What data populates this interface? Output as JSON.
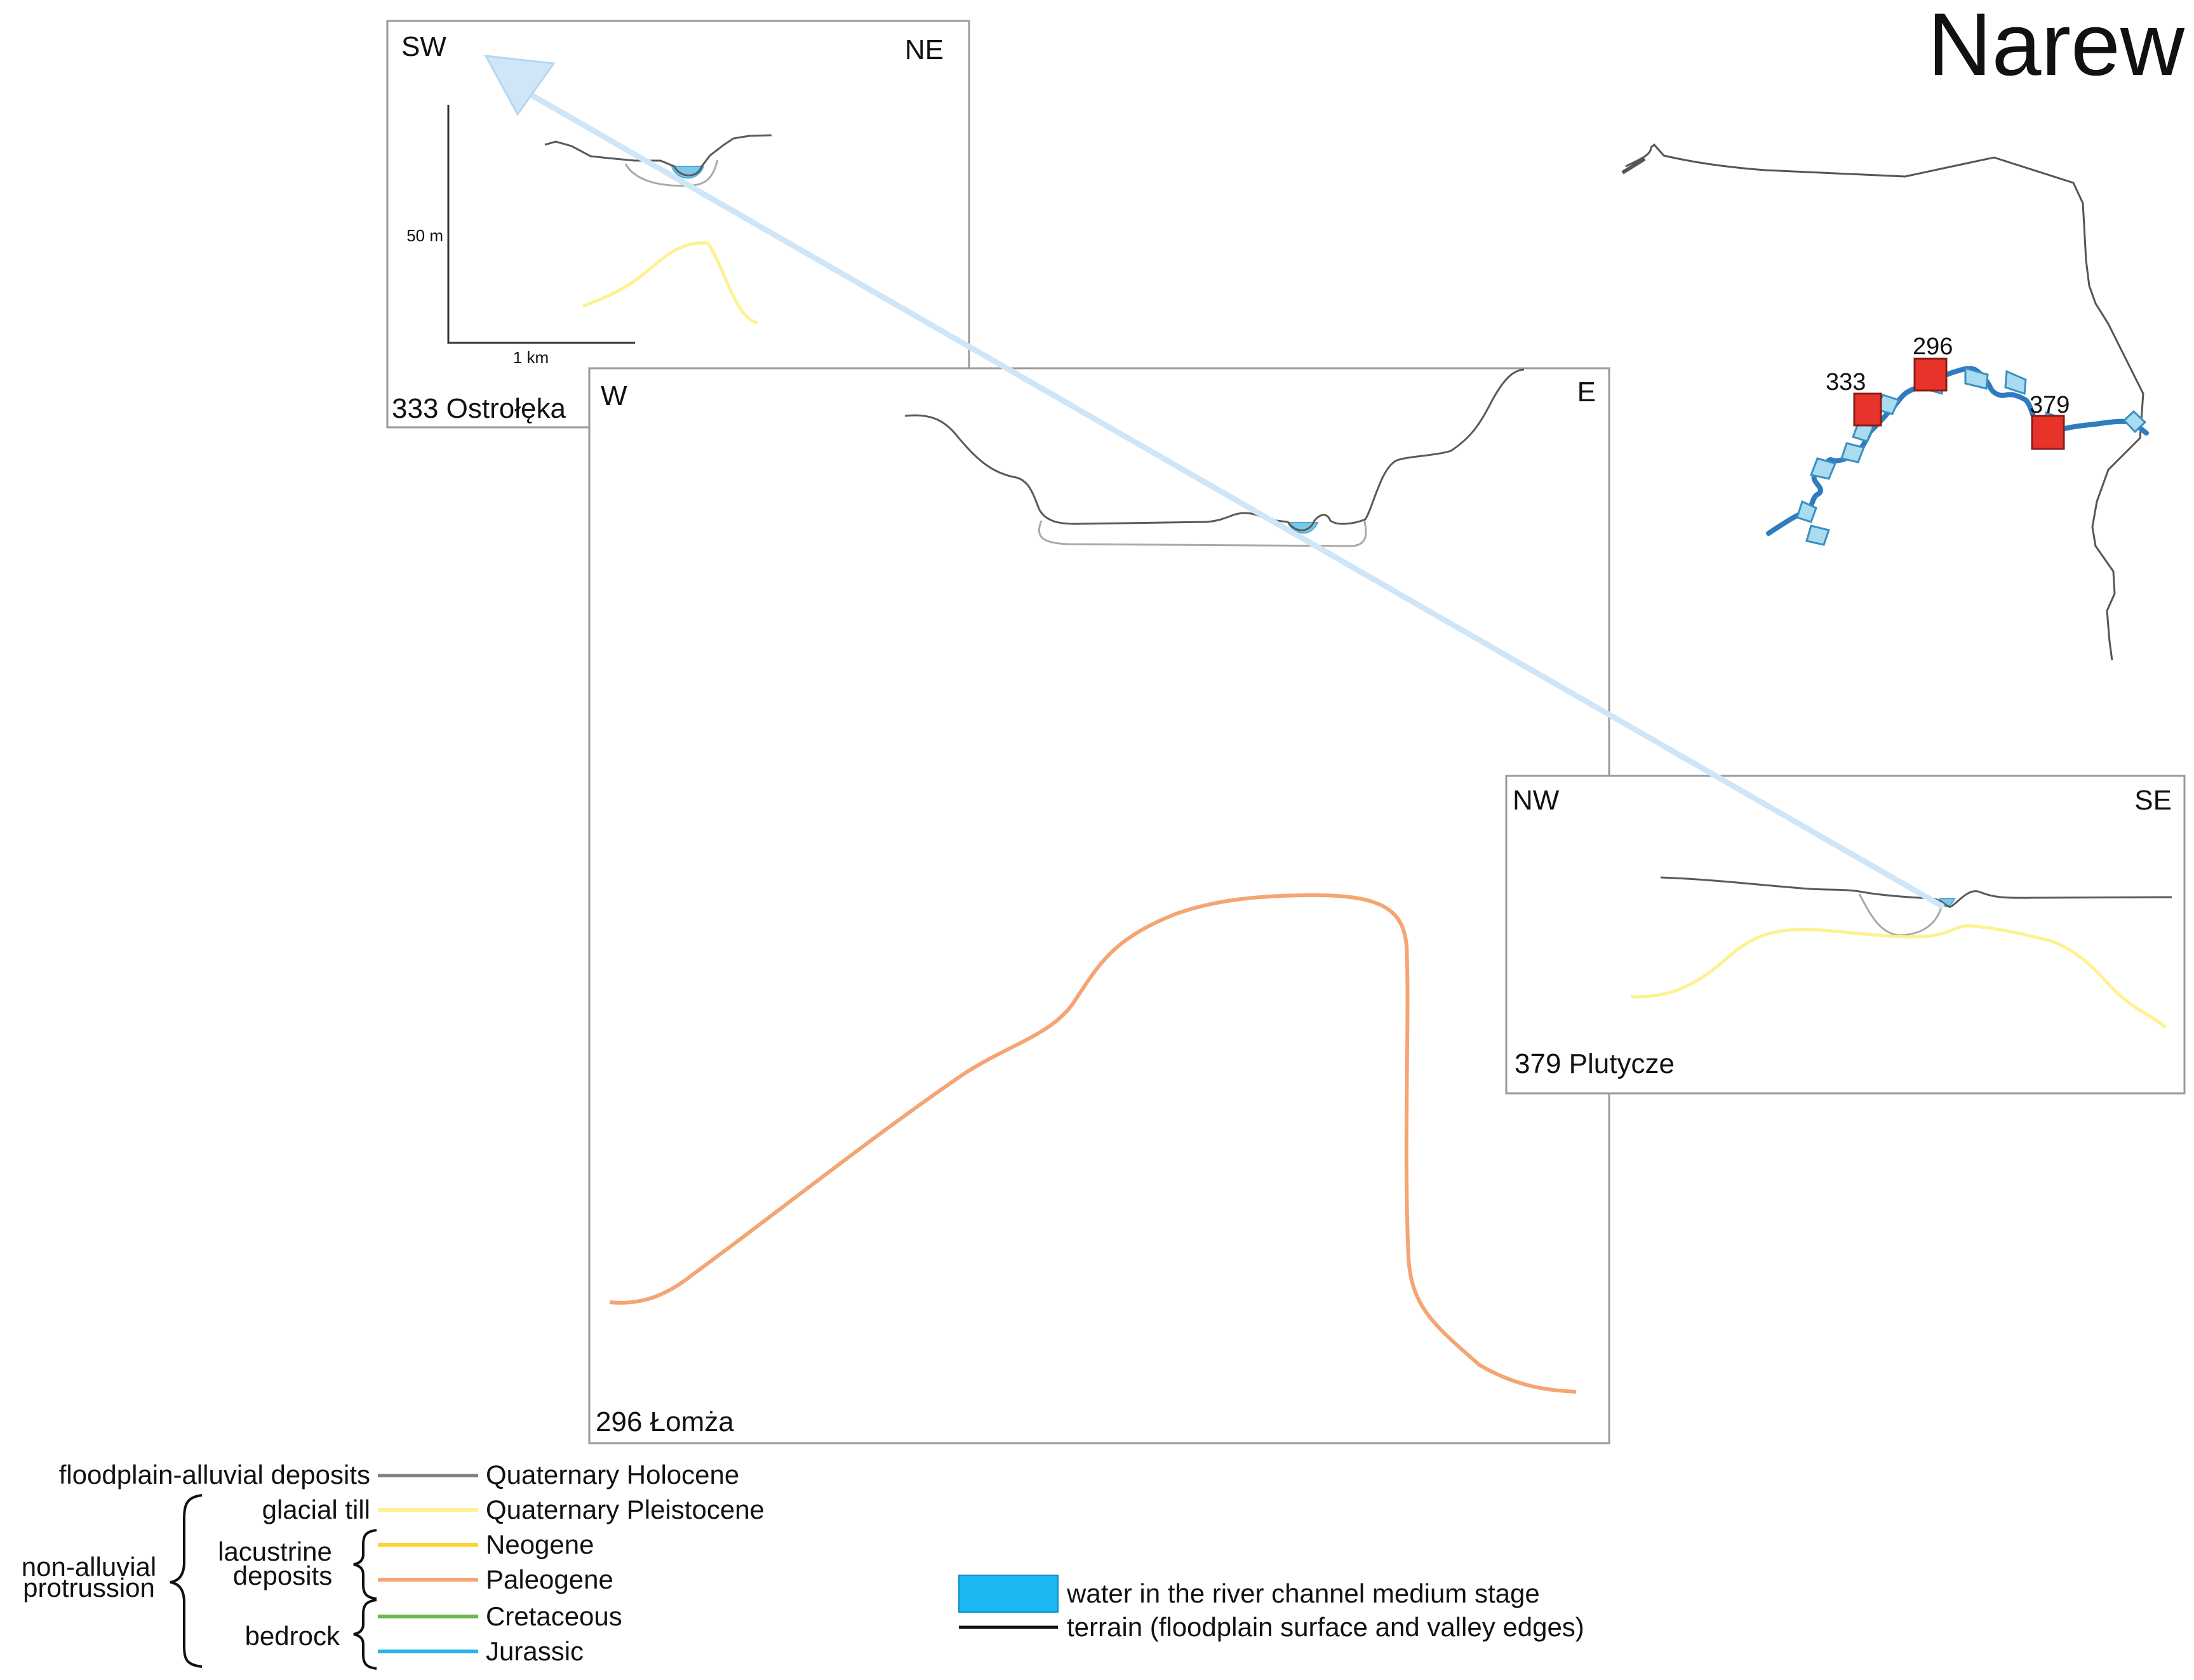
{
  "title": "Narew",
  "panels": {
    "ostroleka": {
      "left_dir": "SW",
      "right_dir": "NE",
      "caption": "333 Ostrołęka",
      "scale_vertical": "50 m",
      "scale_horizontal": "1 km"
    },
    "lomza": {
      "left_dir": "W",
      "right_dir": "E",
      "caption": "296 Łomża"
    },
    "plutycze": {
      "left_dir": "NW",
      "right_dir": "SE",
      "caption": "379 Plutycze"
    }
  },
  "map": {
    "sites": [
      "333",
      "296",
      "379"
    ],
    "colors": {
      "site_marker": "#e8332a",
      "river": "#2f7bbf",
      "flow_arrow": "#a9dcf0"
    }
  },
  "legend": {
    "rows": {
      "holocene": {
        "left": "floodplain-alluvial deposits",
        "right": "Quaternary Holocene",
        "color": "#7f7f7f"
      },
      "pleistocene": {
        "left": "glacial till",
        "right": "Quaternary Pleistocene",
        "color": "#fdf28f"
      },
      "neogene": {
        "right": "Neogene",
        "color": "#ffd430"
      },
      "paleogene": {
        "right": "Paleogene",
        "color": "#f5a573"
      },
      "cretaceous": {
        "right": "Cretaceous",
        "color": "#6ab74a"
      },
      "jurassic": {
        "right": "Jurassic",
        "color": "#2ab4e8"
      }
    },
    "groups": {
      "non_alluvial": [
        "non-alluvial",
        "protrussion"
      ],
      "lacustrine": [
        "lacustrine",
        "deposits"
      ],
      "bedrock": "bedrock"
    },
    "water": {
      "label": "water in the river channel medium stage",
      "color": "#1ab7f0"
    },
    "terrain": {
      "label": "terrain (floodplain surface and valley edges)",
      "color": "#111111"
    }
  },
  "colors": {
    "connector": "#cfe6f8",
    "terrain_line": "#5a5a5a",
    "alluvium_base": "#a9a9a9",
    "water_fill": "#7cc8e8"
  }
}
